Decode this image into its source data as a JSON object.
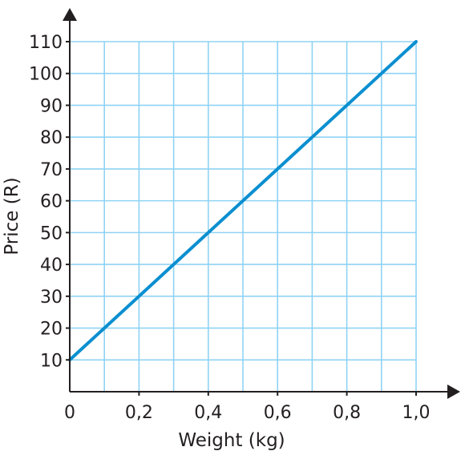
{
  "chart_data": {
    "type": "line",
    "title": "",
    "xlabel": "Weight (kg)",
    "ylabel": "Price (R)",
    "x_ticks": [
      0,
      0.2,
      0.4,
      0.6,
      0.8,
      1.0
    ],
    "x_tick_labels": [
      "0",
      "0,2",
      "0,4",
      "0,6",
      "0,8",
      "1,0"
    ],
    "y_ticks": [
      10,
      20,
      30,
      40,
      50,
      60,
      70,
      80,
      90,
      100,
      110
    ],
    "y_tick_labels": [
      "10",
      "20",
      "30",
      "40",
      "50",
      "60",
      "70",
      "80",
      "90",
      "100",
      "110"
    ],
    "xlim": [
      0,
      1.0
    ],
    "ylim": [
      0,
      110
    ],
    "grid": true,
    "x_grid_step": 0.1,
    "y_grid_step": 10,
    "series": [
      {
        "x": [
          0,
          1.0
        ],
        "y": [
          10,
          110
        ],
        "color": "#0a8fd0"
      }
    ],
    "colors": {
      "grid": "#8fd3f4",
      "axis": "#231f20",
      "line": "#0a8fd0"
    }
  }
}
